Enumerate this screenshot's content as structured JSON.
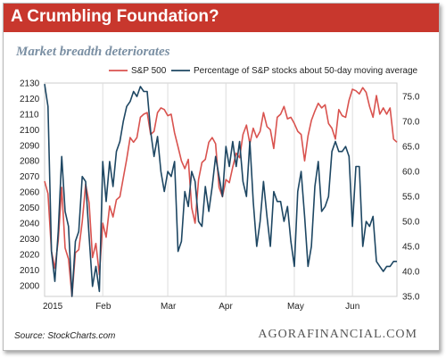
{
  "header": {
    "title": "A Crumbling Foundation?"
  },
  "chart_data": {
    "type": "line",
    "title": "Market breadth deteriorates",
    "x_ticks": [
      "2015",
      "Feb",
      "Mar",
      "Apr",
      "May",
      "Jun"
    ],
    "left_axis": {
      "ylim": [
        1993,
        2130
      ],
      "ticks": [
        2000,
        2010,
        2020,
        2030,
        2040,
        2050,
        2060,
        2070,
        2080,
        2090,
        2100,
        2110,
        2120,
        2130
      ]
    },
    "right_axis": {
      "ylim": [
        35.0,
        77.7
      ],
      "ticks": [
        "35.0",
        "40.0",
        "45.0",
        "50.0",
        "55.0",
        "60.0",
        "65.0",
        "70.0",
        "75.0"
      ]
    },
    "legend": {
      "placement": "top",
      "entries": [
        "S&P 500",
        "Percentage of S&P stocks about 50-day moving average"
      ]
    },
    "series": [
      {
        "name": "S&P 500",
        "axis": "left",
        "color": "#d9534f",
        "x": [
          0,
          1,
          2,
          3,
          4,
          5,
          6,
          7,
          8,
          9,
          10,
          11,
          12,
          13,
          14,
          15,
          16,
          17,
          18,
          19,
          20,
          21,
          22,
          23,
          24,
          25,
          26,
          27,
          28,
          29,
          30,
          31,
          32,
          33,
          34,
          35,
          36,
          37,
          38,
          39,
          40,
          41,
          42,
          43,
          44,
          45,
          46,
          47,
          48,
          49,
          50,
          51,
          52,
          53,
          54,
          55,
          56,
          57,
          58,
          59,
          60,
          61,
          62,
          63,
          64,
          65,
          66,
          67,
          68,
          69,
          70,
          71,
          72,
          73,
          74,
          75,
          76,
          77,
          78,
          79,
          80,
          81,
          82,
          83,
          84,
          85,
          86,
          87,
          88,
          89,
          90,
          91,
          92,
          93,
          94,
          95,
          96,
          97,
          98,
          99,
          100,
          101,
          102,
          103
        ],
        "values": [
          2067,
          2059,
          2022,
          2011,
          2029,
          2063,
          2024,
          2017,
          1993,
          2021,
          2023,
          2041,
          2065,
          2053,
          2018,
          2027,
          2007,
          2040,
          2031,
          2051,
          2044,
          2055,
          2057,
          2069,
          2081,
          2095,
          2092,
          2095,
          2108,
          2110,
          2111,
          2097,
          2099,
          2111,
          2114,
          2113,
          2109,
          2110,
          2098,
          2089,
          2080,
          2075,
          2081,
          2050,
          2040,
          2068,
          2079,
          2081,
          2092,
          2095,
          2091,
          2063,
          2057,
          2068,
          2066,
          2076,
          2085,
          2082,
          2097,
          2103,
          2091,
          2101,
          2095,
          2099,
          2111,
          2102,
          2100,
          2088,
          2108,
          2110,
          2115,
          2107,
          2108,
          2104,
          2099,
          2097,
          2080,
          2096,
          2106,
          2112,
          2117,
          2114,
          2116,
          2104,
          2101,
          2094,
          2113,
          2109,
          2108,
          2119,
          2126,
          2125,
          2123,
          2127,
          2124,
          2115,
          2108,
          2122,
          2110,
          2114,
          2110,
          2114,
          2094,
          2092
        ]
      },
      {
        "name": "Percentage of S&P stocks about 50-day moving average",
        "axis": "right",
        "color": "#1e4763",
        "x": [
          0,
          1,
          2,
          3,
          4,
          5,
          6,
          7,
          8,
          9,
          10,
          11,
          12,
          13,
          14,
          15,
          16,
          17,
          18,
          19,
          20,
          21,
          22,
          23,
          24,
          25,
          26,
          27,
          28,
          29,
          30,
          31,
          32,
          33,
          34,
          35,
          36,
          37,
          38,
          39,
          40,
          41,
          42,
          43,
          44,
          45,
          46,
          47,
          48,
          49,
          50,
          51,
          52,
          53,
          54,
          55,
          56,
          57,
          58,
          59,
          60,
          61,
          62,
          63,
          64,
          65,
          66,
          67,
          68,
          69,
          70,
          71,
          72,
          73,
          74,
          75,
          76,
          77,
          78,
          79,
          80,
          81,
          82,
          83,
          84,
          85,
          86,
          87,
          88,
          89,
          90,
          91,
          92,
          93,
          94,
          95,
          96,
          97,
          98,
          99,
          100,
          101,
          102,
          103
        ],
        "values": [
          77.5,
          73,
          44,
          38,
          48,
          63,
          52,
          49,
          35,
          46,
          48,
          59,
          58,
          47,
          37,
          41,
          36,
          62,
          54,
          62,
          57,
          64,
          66,
          70,
          73,
          74,
          76,
          75,
          77,
          76,
          76,
          68,
          63,
          67,
          60,
          56,
          60,
          59,
          62,
          44,
          46,
          56,
          53,
          60,
          58,
          50,
          49,
          57,
          52,
          57,
          63,
          59,
          55,
          65,
          61,
          66,
          61,
          66,
          58,
          55,
          66,
          54,
          45,
          50,
          58,
          51,
          45,
          56,
          54,
          54,
          50,
          53,
          46,
          41,
          56,
          60,
          51,
          41,
          45,
          57,
          62,
          52,
          53,
          55,
          64,
          66,
          64,
          64,
          65,
          63,
          49,
          61,
          61,
          45,
          50,
          49,
          51,
          42,
          41,
          40,
          41,
          41,
          42,
          42
        ]
      }
    ]
  },
  "footer": {
    "source": "Source: StockCharts.com",
    "brand": "AGORAFINANCIAL.COM"
  }
}
